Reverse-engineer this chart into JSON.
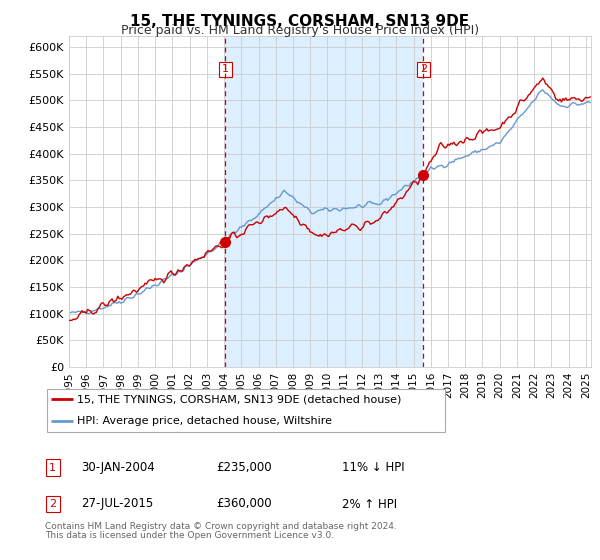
{
  "title": "15, THE TYNINGS, CORSHAM, SN13 9DE",
  "subtitle": "Price paid vs. HM Land Registry's House Price Index (HPI)",
  "ylim": [
    0,
    620000
  ],
  "ytick_values": [
    0,
    50000,
    100000,
    150000,
    200000,
    250000,
    300000,
    350000,
    400000,
    450000,
    500000,
    550000,
    600000
  ],
  "xmin": 1995.0,
  "xmax": 2025.3,
  "marker1_x": 2004.08,
  "marker1_y": 235000,
  "marker1_label": "1",
  "marker1_date": "30-JAN-2004",
  "marker1_price": "£235,000",
  "marker1_hpi": "11% ↓ HPI",
  "marker2_x": 2015.57,
  "marker2_y": 360000,
  "marker2_label": "2",
  "marker2_date": "27-JUL-2015",
  "marker2_price": "£360,000",
  "marker2_hpi": "2% ↑ HPI",
  "legend_line1": "15, THE TYNINGS, CORSHAM, SN13 9DE (detached house)",
  "legend_line2": "HPI: Average price, detached house, Wiltshire",
  "footer_line1": "Contains HM Land Registry data © Crown copyright and database right 2024.",
  "footer_line2": "This data is licensed under the Open Government Licence v3.0.",
  "line_color_red": "#cc0000",
  "line_color_blue": "#6699cc",
  "vline_color": "#cc0000",
  "plot_bg": "#ffffff",
  "shade_color": "#ddeeff",
  "grid_color": "#cccccc",
  "xtick_years": [
    1995,
    1996,
    1997,
    1998,
    1999,
    2000,
    2001,
    2002,
    2003,
    2004,
    2005,
    2006,
    2007,
    2008,
    2009,
    2010,
    2011,
    2012,
    2013,
    2014,
    2015,
    2016,
    2017,
    2018,
    2019,
    2020,
    2021,
    2022,
    2023,
    2024,
    2025
  ]
}
